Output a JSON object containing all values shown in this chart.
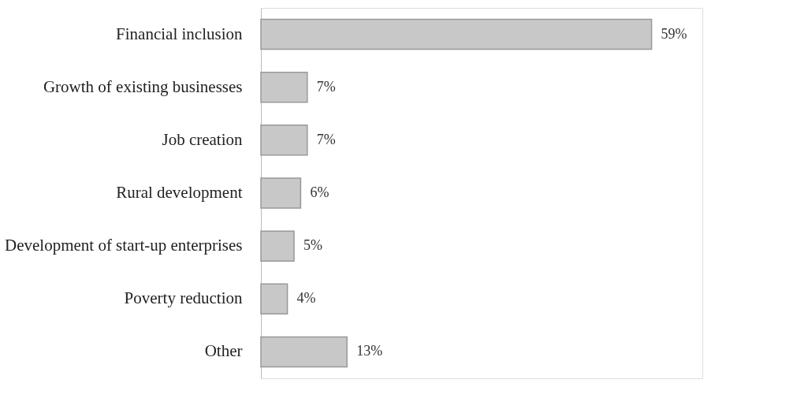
{
  "chart_data": {
    "type": "bar",
    "orientation": "horizontal",
    "categories": [
      "Financial inclusion",
      "Growth of existing businesses",
      "Job creation",
      "Rural development",
      "Development of start-up enterprises",
      "Poverty reduction",
      "Other"
    ],
    "values": [
      59,
      7,
      7,
      6,
      5,
      4,
      13
    ],
    "value_labels": [
      "59%",
      "7%",
      "7%",
      "6%",
      "5%",
      "4%",
      "13%"
    ],
    "color": "#c8c8c8"
  }
}
